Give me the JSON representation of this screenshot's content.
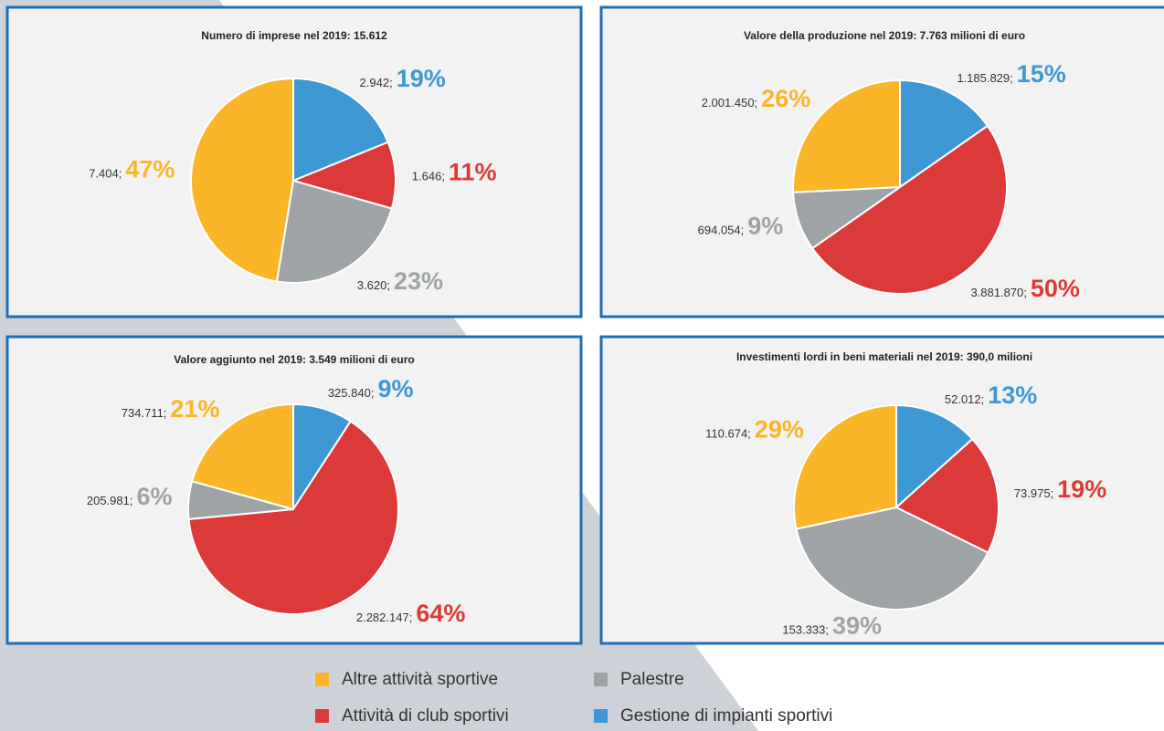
{
  "chart_data": [
    {
      "type": "pie",
      "title": "Numero di imprese  nel 2019: 15.612",
      "values": [
        2942,
        1646,
        3620,
        7404
      ],
      "value_labels": [
        "2.942;",
        "1.646;",
        "3.620;",
        "7.404;"
      ],
      "percent_labels": [
        "19%",
        "11%",
        "23%",
        "47%"
      ]
    },
    {
      "type": "pie",
      "title": "Valore della produzione  nel 2019: 7.763 milioni  di euro",
      "values": [
        1185829,
        3881870,
        694054,
        2001450
      ],
      "value_labels": [
        "1.185.829;",
        "3.881.870;",
        "694.054;",
        "2.001.450;"
      ],
      "percent_labels": [
        "15%",
        "50%",
        "9%",
        "26%"
      ]
    },
    {
      "type": "pie",
      "title": "Valore aggiunto nel 2019:  3.549 milioni  di euro",
      "values": [
        325840,
        2282147,
        205981,
        734711
      ],
      "value_labels": [
        "325.840;",
        "2.282.147;",
        "205.981;",
        "734.711;"
      ],
      "percent_labels": [
        "9%",
        "64%",
        "6%",
        "21%"
      ]
    },
    {
      "type": "pie",
      "title": "Investimenti lordi in beni materiali nel 2019: 390,0 milioni",
      "values": [
        52012,
        73975,
        153333,
        110674
      ],
      "value_labels": [
        "52.012;",
        "73.975;",
        "153.333;",
        "110.674;"
      ],
      "percent_labels": [
        "13%",
        "19%",
        "39%",
        "29%"
      ]
    }
  ],
  "legend": [
    {
      "name": "Gestione di impianti sportivi",
      "color": "#3d98d3"
    },
    {
      "name": "Attività di club sportivi",
      "color": "#dc3a38"
    },
    {
      "name": "Palestre",
      "color": "#9ea3a6"
    },
    {
      "name": "Altre attività sportive",
      "color": "#fbb528"
    }
  ]
}
